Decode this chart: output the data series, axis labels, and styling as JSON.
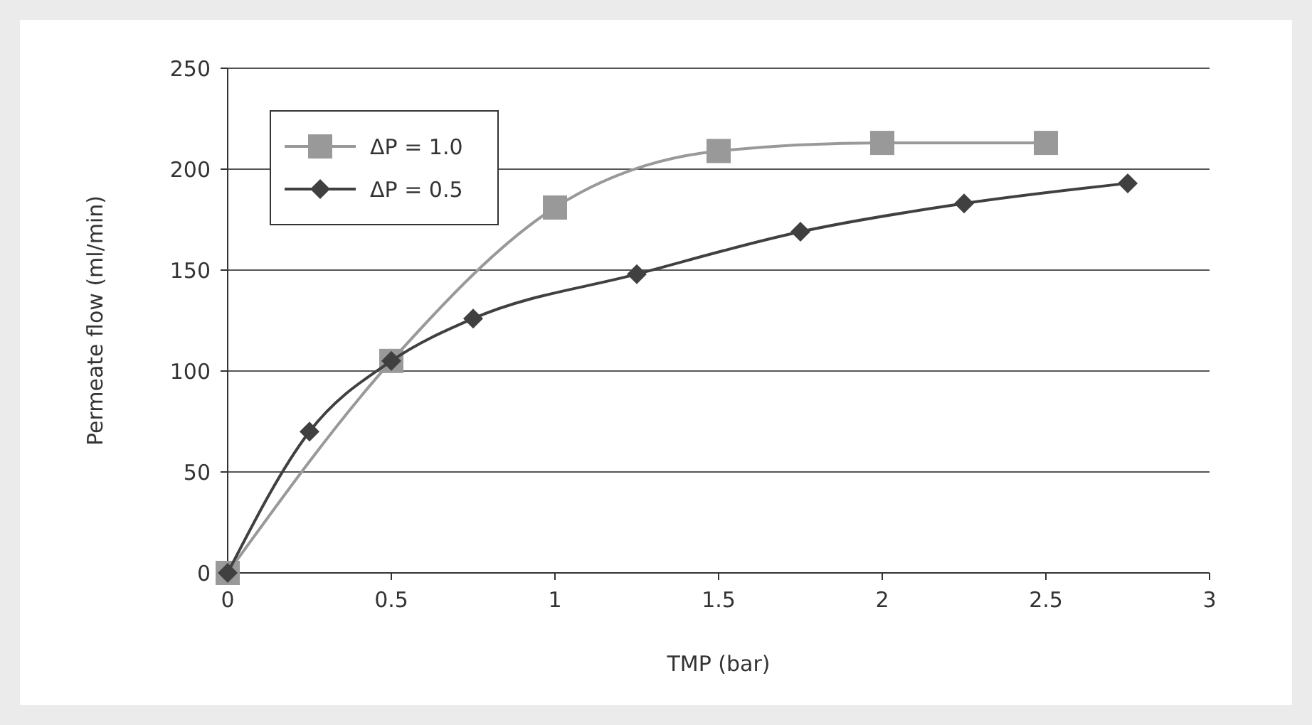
{
  "chart_data": {
    "type": "line",
    "xlabel": "TMP (bar)",
    "ylabel": "Permeate flow (ml/min)",
    "xlim": [
      0,
      3
    ],
    "xticks": [
      0,
      0.5,
      1,
      1.5,
      2,
      2.5,
      3
    ],
    "ylim": [
      0,
      250
    ],
    "yticks": [
      0,
      50,
      100,
      150,
      200,
      250
    ],
    "grid": "y",
    "legend": "top left",
    "series": [
      {
        "name": "ΔP = 1.0",
        "color": "#999999",
        "marker": "square",
        "x": [
          0,
          0.5,
          1,
          1.5,
          2,
          2.5
        ],
        "values": [
          0,
          105,
          181,
          209,
          213,
          213
        ]
      },
      {
        "name": "ΔP = 0.5",
        "color": "#404040",
        "marker": "diamond",
        "x": [
          0,
          0.25,
          0.5,
          0.75,
          1.25,
          1.75,
          2.25,
          2.75
        ],
        "values": [
          0,
          70,
          105,
          126,
          148,
          169,
          183,
          193
        ]
      }
    ]
  }
}
